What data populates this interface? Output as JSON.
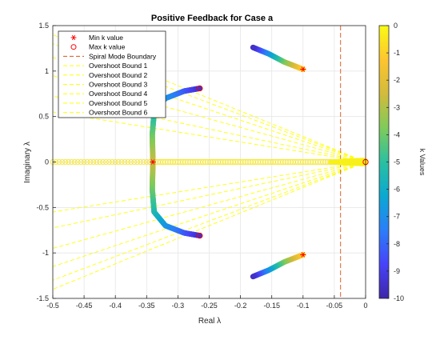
{
  "chart_data": {
    "type": "scatter",
    "title": "Positive Feedback for Case a",
    "xlabel": "Real λ",
    "ylabel": "Imaginary λ",
    "xlim": [
      -0.5,
      0
    ],
    "ylim": [
      -1.5,
      1.5
    ],
    "xticks": [
      -0.5,
      -0.45,
      -0.4,
      -0.35,
      -0.3,
      -0.25,
      -0.2,
      -0.15,
      -0.1,
      -0.05,
      0
    ],
    "xtick_labels": [
      "-0.5",
      "-0.45",
      "-0.4",
      "-0.35",
      "-0.3",
      "-0.25",
      "-0.2",
      "-0.15",
      "-0.1",
      "-0.05",
      "0"
    ],
    "yticks": [
      -1.5,
      -1,
      -0.5,
      0,
      0.5,
      1,
      1.5
    ],
    "ytick_labels": [
      "-1.5",
      "-1",
      "-0.5",
      "0",
      "0.5",
      "1",
      "1.5"
    ],
    "grid": true,
    "legend_position": "top-left",
    "legend": [
      {
        "label": "Min k value",
        "marker": "asterisk",
        "color": "#ff0000"
      },
      {
        "label": "Max k value",
        "marker": "circle",
        "color": "#ff0000"
      },
      {
        "label": "Spiral Mode Boundary",
        "style": "dashed-line",
        "color": "#d95319"
      },
      {
        "label": "Overshoot Bound 1",
        "style": "dashed-line",
        "color": "#ffff00"
      },
      {
        "label": "Overshoot Bound 2",
        "style": "dashed-line",
        "color": "#ffff00"
      },
      {
        "label": "Overshoot Bound 3",
        "style": "dashed-line",
        "color": "#ffff00"
      },
      {
        "label": "Overshoot Bound 4",
        "style": "dashed-line",
        "color": "#ffff00"
      },
      {
        "label": "Overshoot Bound 5",
        "style": "dashed-line",
        "color": "#ffff00"
      },
      {
        "label": "Overshoot Bound 6",
        "style": "dashed-line",
        "color": "#ffff00"
      }
    ],
    "spiral_mode_boundary_x": -0.04,
    "overshoot_bound_slopes": [
      1.1,
      1.45,
      1.9,
      2.3,
      2.6,
      2.8
    ],
    "min_k_points": [
      [
        -0.1,
        1.02
      ],
      [
        -0.1,
        -1.02
      ],
      [
        -0.34,
        0
      ]
    ],
    "max_k_points": [
      [
        -0.265,
        0.81
      ],
      [
        -0.265,
        -0.81
      ],
      [
        0,
        0
      ]
    ],
    "branches": [
      {
        "name": "upper-right",
        "points": [
          [
            -0.1,
            1.02
          ],
          [
            -0.13,
            1.1
          ],
          [
            -0.155,
            1.19
          ],
          [
            -0.18,
            1.26
          ]
        ]
      },
      {
        "name": "lower-right",
        "points": [
          [
            -0.1,
            -1.02
          ],
          [
            -0.13,
            -1.1
          ],
          [
            -0.155,
            -1.19
          ],
          [
            -0.18,
            -1.26
          ]
        ]
      },
      {
        "name": "upper-left",
        "points": [
          [
            -0.34,
            0.0
          ],
          [
            -0.341,
            0.3
          ],
          [
            -0.338,
            0.55
          ],
          [
            -0.32,
            0.7
          ],
          [
            -0.29,
            0.78
          ],
          [
            -0.265,
            0.81
          ]
        ]
      },
      {
        "name": "lower-left",
        "points": [
          [
            -0.34,
            0.0
          ],
          [
            -0.341,
            -0.3
          ],
          [
            -0.338,
            -0.55
          ],
          [
            -0.32,
            -0.7
          ],
          [
            -0.29,
            -0.78
          ],
          [
            -0.265,
            -0.81
          ]
        ]
      }
    ],
    "real_axis_left": {
      "x_from": -0.5,
      "x_to": -0.34
    },
    "real_axis_right": {
      "x_from": -0.34,
      "x_to": 0
    },
    "colorbar": {
      "label": "k Values",
      "range": [
        -10,
        0
      ],
      "ticks": [
        0,
        -1,
        -2,
        -3,
        -4,
        -5,
        -6,
        -7,
        -8,
        -9,
        -10
      ],
      "tick_labels": [
        "0",
        "-1",
        "-2",
        "-3",
        "-4",
        "-5",
        "-6",
        "-7",
        "-8",
        "-9",
        "-10"
      ],
      "colormap": [
        "#3e26a8",
        "#4743f8",
        "#2b7ef9",
        "#0ba8d1",
        "#2bc0a0",
        "#7fcb5a",
        "#d2bb3c",
        "#fdc52f",
        "#f9fb15"
      ]
    }
  }
}
